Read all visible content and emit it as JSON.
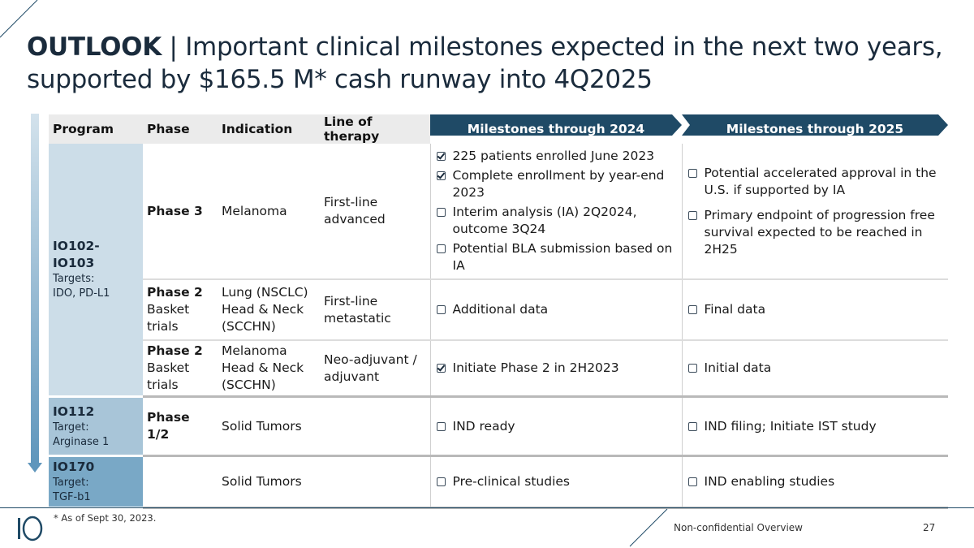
{
  "title": {
    "bold": "OUTLOOK",
    "separator": " | ",
    "rest": "Important clinical milestones expected in the next two years, supported by $165.5 M* cash runway into 4Q2025"
  },
  "headers": {
    "program": "Program",
    "phase": "Phase",
    "indication": "Indication",
    "line": "Line of therapy",
    "m2024": "Milestones through 2024",
    "m2025": "Milestones through 2025"
  },
  "programs": [
    {
      "name": "IO102-IO103",
      "targets_label": "Targets:",
      "targets": "IDO, PD-L1"
    },
    {
      "name": "IO112",
      "targets_label": "Target:",
      "targets": "Arginase 1"
    },
    {
      "name": "IO170",
      "targets_label": "Target:",
      "targets": "TGF-b1"
    }
  ],
  "rows": [
    {
      "phase": "Phase 3",
      "indication": "Melanoma",
      "line": "First-line advanced",
      "m2024": [
        {
          "text": "225 patients enrolled June 2023",
          "checked": true
        },
        {
          "text": "Complete enrollment by year-end 2023",
          "checked": true
        },
        {
          "text": "Interim analysis (IA) 2Q2024, outcome 3Q24",
          "checked": false
        },
        {
          "text": "Potential BLA submission based on IA",
          "checked": false
        }
      ],
      "m2025": [
        {
          "text": "Potential accelerated approval in the U.S. if supported by IA",
          "checked": false
        },
        {
          "text": "Primary endpoint of progression free survival expected to be reached in 2H25",
          "checked": false
        }
      ]
    },
    {
      "phase": "Phase 2",
      "phase_sub": "Basket trials",
      "indication": "Lung (NSCLC) Head & Neck (SCCHN)",
      "line": "First-line metastatic",
      "m2024": [
        {
          "text": "Additional data",
          "checked": false
        }
      ],
      "m2025": [
        {
          "text": "Final data",
          "checked": false
        }
      ]
    },
    {
      "phase": "Phase 2",
      "phase_sub": "Basket trials",
      "indication": "Melanoma Head & Neck (SCCHN)",
      "line": "Neo-adjuvant / adjuvant",
      "m2024": [
        {
          "text": "Initiate Phase 2 in 2H2023",
          "checked": true
        }
      ],
      "m2025": [
        {
          "text": "Initial data",
          "checked": false
        }
      ]
    },
    {
      "phase": "Phase 1/2",
      "indication": "Solid Tumors",
      "line": "",
      "m2024": [
        {
          "text": "IND ready",
          "checked": false
        }
      ],
      "m2025": [
        {
          "text": "IND filing; Initiate IST study",
          "checked": false
        }
      ]
    },
    {
      "phase": "",
      "indication": "Solid Tumors",
      "line": "",
      "m2024": [
        {
          "text": "Pre-clinical studies",
          "checked": false
        }
      ],
      "m2025": [
        {
          "text": "IND enabling studies",
          "checked": false
        }
      ]
    }
  ],
  "footnote": "* As of Sept 30, 2023.",
  "footer_label": "Non-confidential Overview",
  "page_number": "27",
  "colors": {
    "header_arrow": "#1f4a66",
    "program1": "#ccdde8",
    "program2": "#a8c5d8",
    "program3": "#79a8c6",
    "rail": "#5f96bc"
  }
}
